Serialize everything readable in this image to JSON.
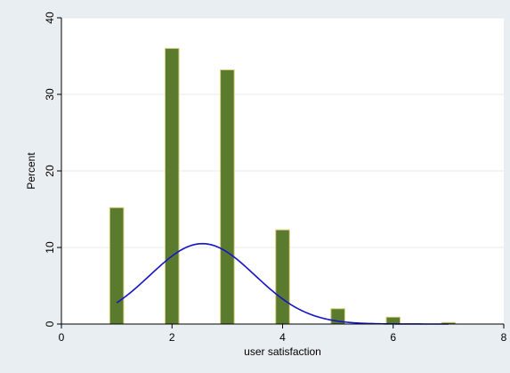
{
  "chart_data": {
    "type": "bar",
    "xlabel": "user satisfaction",
    "ylabel": "Percent",
    "xlim": [
      0,
      8
    ],
    "ylim": [
      0,
      40
    ],
    "x_ticks": [
      0,
      2,
      4,
      6,
      8
    ],
    "y_ticks": [
      0,
      10,
      20,
      30,
      40
    ],
    "grid": "horizontal",
    "bar_width": 0.25,
    "series": [
      {
        "kind": "histogram",
        "x": [
          1,
          2,
          3,
          4,
          5,
          6,
          7
        ],
        "values": [
          15.2,
          36.0,
          33.2,
          12.3,
          2.0,
          0.9,
          0.2
        ],
        "color": "#5a7a2e",
        "edge_color": "#d8cc7a"
      },
      {
        "kind": "normal-density-curve",
        "x_range": [
          1,
          7
        ],
        "mean": 2.55,
        "sd": 0.95,
        "peak": 10.5,
        "color": "#1414c8"
      }
    ]
  },
  "colors": {
    "outer_background": "#e9eef2",
    "plot_background": "#ffffff",
    "grid": "#e4e8ec"
  }
}
